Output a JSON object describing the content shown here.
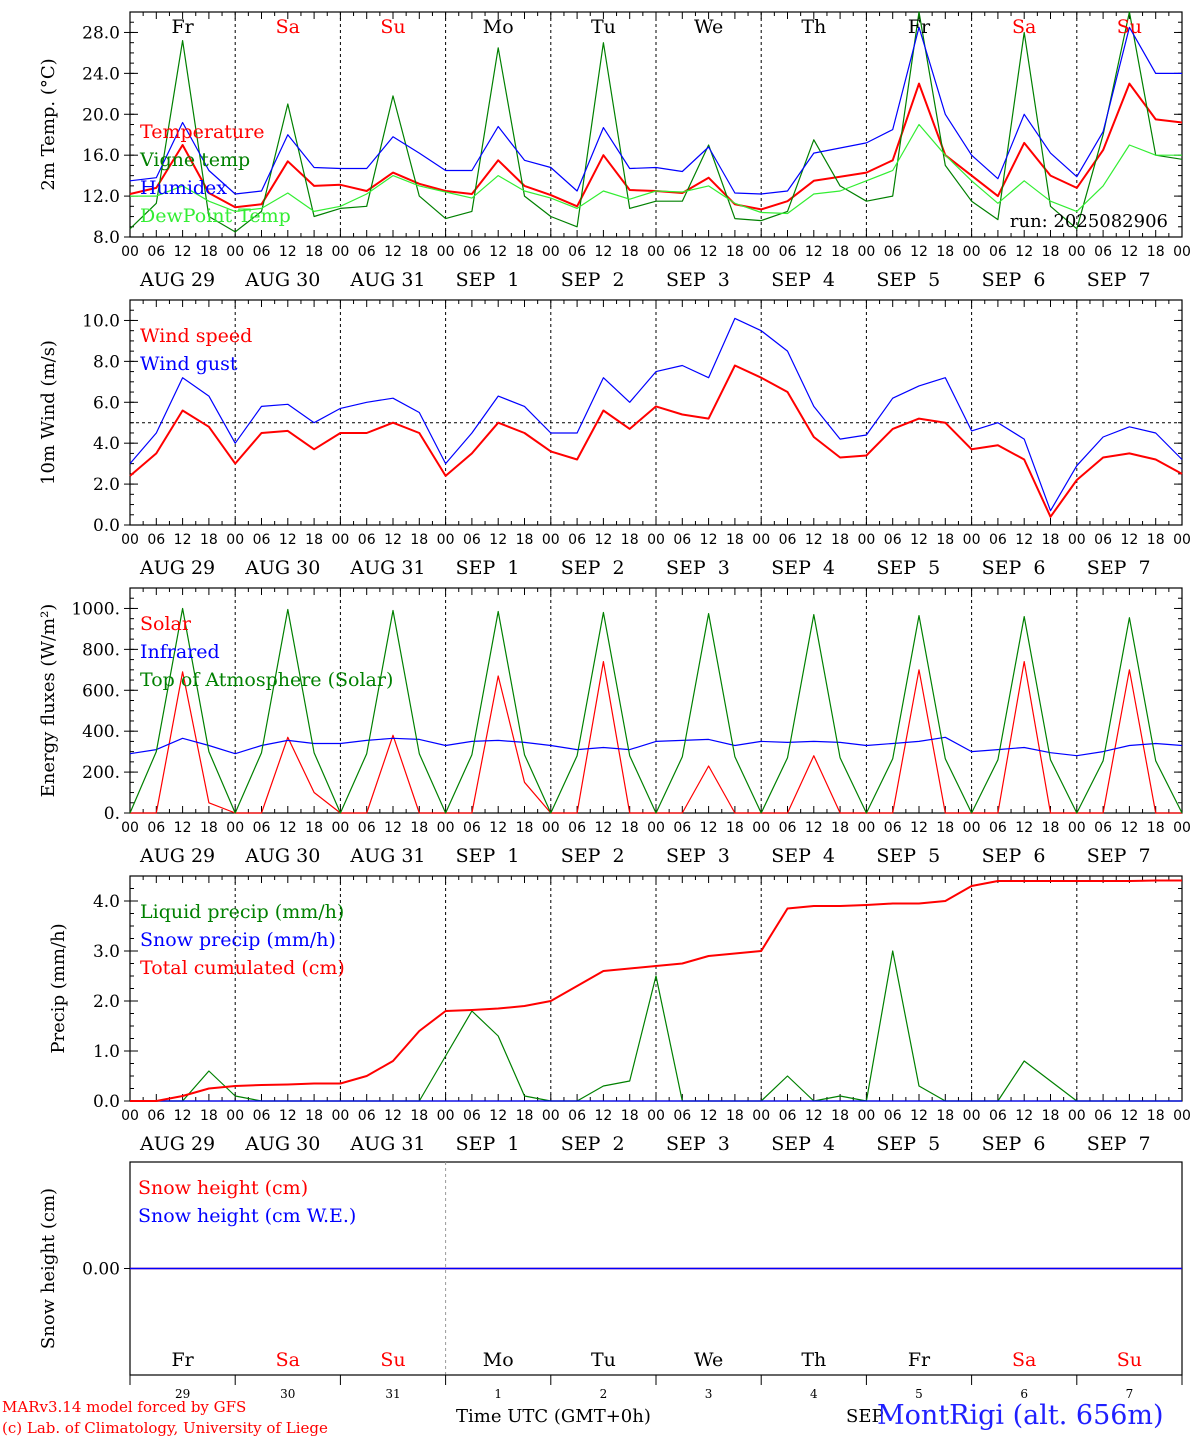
{
  "days": [
    "Fr",
    "Sa",
    "Su",
    "Mo",
    "Tu",
    "We",
    "Th",
    "Fr",
    "Sa",
    "Su"
  ],
  "weekend_days": [
    1,
    2,
    8,
    9
  ],
  "date_labels": [
    "AUG 29",
    "AUG 30",
    "AUG 31",
    "SEP  1",
    "SEP  2",
    "SEP  3",
    "SEP  4",
    "SEP  5",
    "SEP  6",
    "SEP  7"
  ],
  "hour_ticks": [
    "00",
    "06",
    "12",
    "18"
  ],
  "last_hour_tick": "00",
  "day_numbers": [
    "29",
    "30",
    "31",
    "1",
    "2",
    "3",
    "4",
    "5",
    "6",
    "7"
  ],
  "run_label": "run: 2025082906",
  "footer": {
    "model": "MARv3.14 model forced by GFS",
    "copyright": "(c) Lab. of Climatology, University of Liege",
    "xlabel": "Time UTC (GMT+0h)",
    "month_mark": "SEP",
    "station": "MontRigi (alt. 656m)"
  },
  "colors": {
    "red": "#ff0000",
    "green": "#008000",
    "blue": "#0000ff",
    "lightgreen": "#33ee33",
    "axis": "#000000",
    "grid": "#000000"
  },
  "chart_data": [
    {
      "type": "line",
      "ylabel": "2m Temp. (°C)",
      "ylim": [
        8,
        30
      ],
      "yticks": [
        "8.0",
        "12.0",
        "16.0",
        "20.0",
        "24.0",
        "28.0"
      ],
      "ytick_values": [
        8,
        12,
        16,
        20,
        24,
        28
      ],
      "x_hours": [
        0,
        6,
        12,
        18,
        24,
        30,
        36,
        42,
        48,
        54,
        60,
        66,
        72,
        78,
        84,
        90,
        96,
        102,
        108,
        114,
        120,
        126,
        132,
        138,
        144,
        150,
        156,
        162,
        168,
        174,
        180,
        186,
        192,
        198,
        204,
        210,
        216,
        222,
        228,
        234,
        240
      ],
      "series": [
        {
          "name": "Temperature",
          "color": "red",
          "values": [
            12.2,
            12.8,
            17.0,
            12.3,
            10.9,
            11.2,
            15.4,
            13.0,
            13.1,
            12.5,
            14.3,
            13.2,
            12.5,
            12.2,
            15.5,
            13.0,
            12.1,
            11.0,
            16.0,
            12.6,
            12.5,
            12.3,
            13.8,
            11.2,
            10.7,
            11.5,
            13.5,
            13.9,
            14.3,
            15.5,
            23.0,
            16.0,
            14.0,
            12.0,
            17.2,
            14.0,
            12.8,
            16.5,
            23.0,
            19.5,
            19.2
          ]
        },
        {
          "name": "Vigne temp",
          "color": "green",
          "values": [
            8.8,
            11.3,
            27.2,
            10.0,
            8.5,
            10.5,
            21.0,
            10.0,
            10.8,
            11.0,
            21.8,
            12.0,
            9.8,
            10.5,
            26.5,
            12.0,
            10.0,
            9.0,
            27.0,
            10.8,
            11.5,
            11.5,
            17.0,
            9.8,
            9.6,
            10.5,
            17.5,
            13.0,
            11.5,
            12.0,
            30.0,
            15.0,
            11.5,
            9.7,
            28.0,
            11.0,
            8.8,
            18.0,
            30.0,
            16.0,
            15.6
          ]
        },
        {
          "name": "Humidex",
          "color": "blue",
          "values": [
            13.5,
            13.8,
            19.2,
            14.5,
            12.2,
            12.5,
            18.0,
            14.8,
            14.7,
            14.7,
            17.8,
            16.2,
            14.5,
            14.5,
            18.8,
            15.5,
            14.8,
            12.5,
            18.7,
            14.7,
            14.8,
            14.4,
            16.8,
            12.3,
            12.2,
            12.5,
            16.2,
            16.7,
            17.2,
            18.5,
            28.5,
            20.0,
            16.0,
            13.7,
            20.0,
            16.2,
            13.9,
            18.3,
            28.5,
            24.0,
            24.0
          ]
        },
        {
          "name": "DewPoint Temp",
          "color": "lightgreen",
          "values": [
            12.0,
            12.0,
            13.0,
            11.5,
            10.5,
            10.8,
            12.3,
            10.5,
            11.0,
            12.2,
            14.0,
            13.0,
            12.4,
            11.8,
            14.0,
            12.5,
            11.8,
            10.8,
            12.5,
            11.7,
            12.5,
            12.4,
            13.0,
            11.3,
            10.4,
            10.3,
            12.2,
            12.5,
            13.5,
            14.5,
            19.0,
            16.0,
            13.5,
            11.3,
            13.5,
            11.5,
            10.5,
            13.0,
            17.0,
            16.0,
            16.0
          ]
        }
      ],
      "legend": [
        "Temperature",
        "Vigne temp",
        "Humidex",
        "DewPoint Temp"
      ]
    },
    {
      "type": "line",
      "ylabel": "10m Wind (m/s)",
      "ylim": [
        0,
        11
      ],
      "yticks": [
        "0.0",
        "2.0",
        "4.0",
        "6.0",
        "8.0",
        "10.0"
      ],
      "ytick_values": [
        0,
        2,
        4,
        6,
        8,
        10
      ],
      "reference_line": 5,
      "x_hours": [
        0,
        6,
        12,
        18,
        24,
        30,
        36,
        42,
        48,
        54,
        60,
        66,
        72,
        78,
        84,
        90,
        96,
        102,
        108,
        114,
        120,
        126,
        132,
        138,
        144,
        150,
        156,
        162,
        168,
        174,
        180,
        186,
        192,
        198,
        204,
        210,
        216,
        222,
        228,
        234,
        240
      ],
      "series": [
        {
          "name": "Wind speed",
          "color": "red",
          "values": [
            2.4,
            3.5,
            5.6,
            4.8,
            3.0,
            4.5,
            4.6,
            3.7,
            4.5,
            4.5,
            5.0,
            4.5,
            2.4,
            3.5,
            5.0,
            4.5,
            3.6,
            3.2,
            5.6,
            4.7,
            5.8,
            5.4,
            5.2,
            7.8,
            7.2,
            6.5,
            4.3,
            3.3,
            3.4,
            4.7,
            5.2,
            5.0,
            3.7,
            3.9,
            3.2,
            0.4,
            2.2,
            3.3,
            3.5,
            3.2,
            2.5
          ]
        },
        {
          "name": "Wind gust",
          "color": "blue",
          "values": [
            3.0,
            4.5,
            7.2,
            6.3,
            4.0,
            5.8,
            5.9,
            5.0,
            5.7,
            6.0,
            6.2,
            5.5,
            3.0,
            4.5,
            6.3,
            5.8,
            4.5,
            4.5,
            7.2,
            6.0,
            7.5,
            7.8,
            7.2,
            10.1,
            9.5,
            8.5,
            5.8,
            4.2,
            4.4,
            6.2,
            6.8,
            7.2,
            4.6,
            5.0,
            4.2,
            0.7,
            2.9,
            4.3,
            4.8,
            4.5,
            3.2
          ]
        }
      ],
      "legend": [
        "Wind speed",
        "Wind gust"
      ]
    },
    {
      "type": "line",
      "ylabel": "Energy fluxes (W/m²)",
      "ylim": [
        0,
        1100
      ],
      "yticks": [
        "0.",
        "200.",
        "400.",
        "600.",
        "800.",
        "1000."
      ],
      "ytick_values": [
        0,
        200,
        400,
        600,
        800,
        1000
      ],
      "x_hours": [
        0,
        6,
        12,
        18,
        24,
        30,
        36,
        42,
        48,
        54,
        60,
        66,
        72,
        78,
        84,
        90,
        96,
        102,
        108,
        114,
        120,
        126,
        132,
        138,
        144,
        150,
        156,
        162,
        168,
        174,
        180,
        186,
        192,
        198,
        204,
        210,
        216,
        222,
        228,
        234,
        240
      ],
      "series": [
        {
          "name": "Solar",
          "color": "red",
          "values": [
            0,
            0,
            690,
            50,
            0,
            0,
            370,
            100,
            0,
            0,
            380,
            0,
            0,
            0,
            670,
            150,
            0,
            0,
            740,
            0,
            0,
            0,
            230,
            0,
            0,
            0,
            280,
            0,
            0,
            0,
            700,
            0,
            0,
            0,
            740,
            0,
            0,
            0,
            700,
            0,
            0
          ]
        },
        {
          "name": "Infrared",
          "color": "blue",
          "values": [
            290,
            310,
            365,
            330,
            290,
            330,
            355,
            340,
            340,
            355,
            365,
            360,
            330,
            350,
            355,
            345,
            330,
            310,
            320,
            310,
            350,
            355,
            360,
            330,
            350,
            345,
            350,
            345,
            330,
            340,
            350,
            370,
            300,
            310,
            320,
            295,
            280,
            300,
            330,
            340,
            330
          ]
        },
        {
          "name": "Top of Atmosphere (Solar)",
          "color": "green",
          "values": [
            0,
            300,
            1000,
            300,
            0,
            295,
            995,
            295,
            0,
            290,
            990,
            290,
            0,
            285,
            985,
            285,
            0,
            280,
            980,
            280,
            0,
            275,
            975,
            275,
            0,
            270,
            970,
            270,
            0,
            265,
            965,
            265,
            0,
            260,
            960,
            260,
            0,
            255,
            955,
            255,
            0
          ]
        }
      ],
      "legend": [
        "Solar",
        "Infrared",
        "Top of Atmosphere (Solar)"
      ]
    },
    {
      "type": "line",
      "ylabel": "Precip (mm/h)",
      "ylim": [
        0,
        4.5
      ],
      "yticks": [
        "0.0",
        "1.0",
        "2.0",
        "3.0",
        "4.0"
      ],
      "ytick_values": [
        0,
        1,
        2,
        3,
        4
      ],
      "x_hours": [
        0,
        6,
        12,
        18,
        24,
        30,
        36,
        42,
        48,
        54,
        60,
        66,
        72,
        78,
        84,
        90,
        96,
        102,
        108,
        114,
        120,
        126,
        132,
        138,
        144,
        150,
        156,
        162,
        168,
        174,
        180,
        186,
        192,
        198,
        204,
        210,
        216,
        222,
        228,
        234,
        240
      ],
      "series": [
        {
          "name": "Liquid precip (mm/h)",
          "color": "green",
          "values": [
            0,
            0,
            0,
            0.6,
            0.1,
            0,
            0,
            0,
            0,
            0,
            0,
            0,
            0.9,
            1.8,
            1.3,
            0.1,
            0,
            0,
            0.3,
            0.4,
            2.5,
            0,
            0,
            0,
            0,
            0.5,
            0,
            0.1,
            0,
            3.0,
            0.3,
            0,
            0,
            0,
            0.8,
            0.4,
            0,
            0,
            0,
            0,
            0
          ]
        },
        {
          "name": "Snow precip (mm/h)",
          "color": "blue",
          "values": [
            0,
            0,
            0,
            0,
            0,
            0,
            0,
            0,
            0,
            0,
            0,
            0,
            0,
            0,
            0,
            0,
            0,
            0,
            0,
            0,
            0,
            0,
            0,
            0,
            0,
            0,
            0,
            0,
            0,
            0,
            0,
            0,
            0,
            0,
            0,
            0,
            0,
            0,
            0,
            0,
            0
          ]
        },
        {
          "name": "Total cumulated (cm)",
          "color": "red",
          "values": [
            0,
            0,
            0.1,
            0.25,
            0.3,
            0.32,
            0.33,
            0.35,
            0.35,
            0.5,
            0.8,
            1.4,
            1.8,
            1.82,
            1.85,
            1.9,
            2.0,
            2.3,
            2.6,
            2.65,
            2.7,
            2.75,
            2.9,
            2.95,
            3.0,
            3.85,
            3.9,
            3.9,
            3.92,
            3.95,
            3.95,
            4.0,
            4.3,
            4.4,
            4.4,
            4.4,
            4.4,
            4.4,
            4.4,
            4.41,
            4.41
          ]
        }
      ],
      "legend": [
        "Liquid precip (mm/h)",
        "Snow precip (mm/h)",
        "Total cumulated (cm)"
      ]
    },
    {
      "type": "line",
      "ylabel": "Snow height (cm)",
      "ylim": [
        -1,
        1
      ],
      "yticks": [
        "0.00"
      ],
      "ytick_values": [
        0
      ],
      "series": [
        {
          "name": "Snow height (cm)",
          "color": "red",
          "values": [
            0,
            0
          ]
        },
        {
          "name": "Snow height (cm W.E.)",
          "color": "blue",
          "values": [
            0,
            0
          ]
        }
      ],
      "legend": [
        "Snow height (cm)",
        "Snow height (cm W.E.)"
      ]
    }
  ]
}
